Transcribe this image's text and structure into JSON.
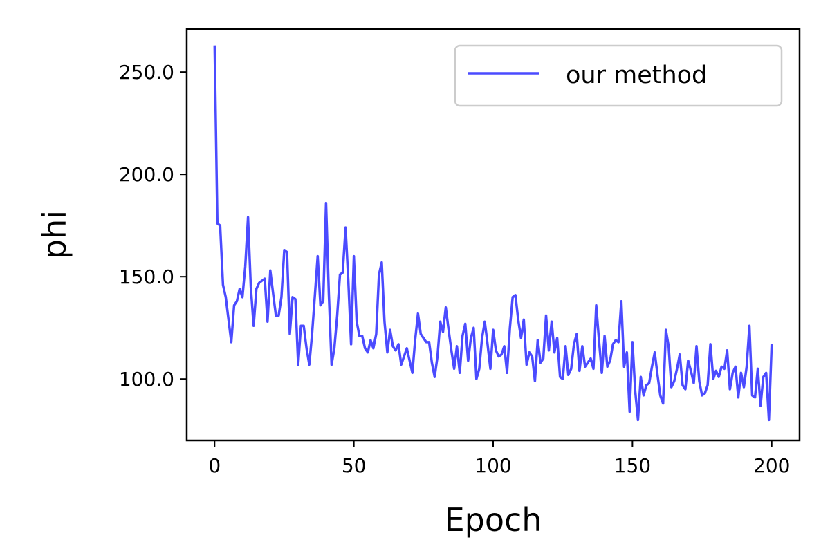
{
  "chart_data": {
    "type": "line",
    "title": "",
    "xlabel": "Epoch",
    "ylabel": "phi",
    "xlim": [
      -10,
      210
    ],
    "ylim": [
      70,
      271
    ],
    "xticks": [
      0,
      50,
      100,
      150,
      200
    ],
    "xtick_labels": [
      "0",
      "50",
      "100",
      "150",
      "200"
    ],
    "yticks": [
      100,
      150,
      200,
      250
    ],
    "ytick_labels": [
      "100.0",
      "150.0",
      "200.0",
      "250.0"
    ],
    "grid": false,
    "legend": "top-right",
    "series": [
      {
        "name": "our method",
        "color": "#4b4bff",
        "x": [
          0,
          1,
          2,
          3,
          4,
          5,
          6,
          7,
          8,
          9,
          10,
          11,
          12,
          13,
          14,
          15,
          16,
          17,
          18,
          19,
          20,
          21,
          22,
          23,
          24,
          25,
          26,
          27,
          28,
          29,
          30,
          31,
          32,
          33,
          34,
          35,
          36,
          37,
          38,
          39,
          40,
          41,
          42,
          43,
          44,
          45,
          46,
          47,
          48,
          49,
          50,
          51,
          52,
          53,
          54,
          55,
          56,
          57,
          58,
          59,
          60,
          61,
          62,
          63,
          64,
          65,
          66,
          67,
          68,
          69,
          70,
          71,
          72,
          73,
          74,
          75,
          76,
          77,
          78,
          79,
          80,
          81,
          82,
          83,
          84,
          85,
          86,
          87,
          88,
          89,
          90,
          91,
          92,
          93,
          94,
          95,
          96,
          97,
          98,
          99,
          100,
          101,
          102,
          103,
          104,
          105,
          106,
          107,
          108,
          109,
          110,
          111,
          112,
          113,
          114,
          115,
          116,
          117,
          118,
          119,
          120,
          121,
          122,
          123,
          124,
          125,
          126,
          127,
          128,
          129,
          130,
          131,
          132,
          133,
          134,
          135,
          136,
          137,
          138,
          139,
          140,
          141,
          142,
          143,
          144,
          145,
          146,
          147,
          148,
          149,
          150,
          151,
          152,
          153,
          154,
          155,
          156,
          157,
          158,
          159,
          160,
          161,
          162,
          163,
          164,
          165,
          166,
          167,
          168,
          169,
          170,
          171,
          172,
          173,
          174,
          175,
          176,
          177,
          178,
          179,
          180,
          181,
          182,
          183,
          184,
          185,
          186,
          187,
          188,
          189,
          190,
          191,
          192,
          193,
          194,
          195,
          196,
          197,
          198,
          199,
          200
        ],
        "values": [
          263,
          176,
          175,
          146,
          140,
          129,
          118,
          136,
          138,
          144,
          140,
          155,
          179,
          145,
          126,
          144,
          147,
          148,
          149,
          128,
          153,
          142,
          131,
          131,
          140,
          163,
          162,
          122,
          140,
          139,
          107,
          126,
          126,
          115,
          107,
          122,
          141,
          160,
          136,
          138,
          186,
          142,
          107,
          115,
          131,
          151,
          152,
          174,
          148,
          117,
          160,
          128,
          121,
          121,
          115,
          113,
          119,
          115,
          122,
          151,
          157,
          128,
          113,
          124,
          116,
          114,
          117,
          107,
          111,
          115,
          109,
          103,
          119,
          132,
          122,
          120,
          118,
          118,
          108,
          101,
          111,
          128,
          123,
          135,
          124,
          114,
          105,
          116,
          103,
          121,
          127,
          109,
          120,
          125,
          100,
          105,
          120,
          128,
          117,
          105,
          124,
          114,
          111,
          112,
          116,
          103,
          125,
          140,
          141,
          129,
          120,
          129,
          107,
          113,
          111,
          99,
          119,
          108,
          110,
          131,
          114,
          128,
          113,
          120,
          101,
          100,
          116,
          102,
          105,
          117,
          122,
          104,
          116,
          106,
          108,
          110,
          105,
          136,
          119,
          103,
          121,
          106,
          109,
          117,
          119,
          118,
          138,
          106,
          113,
          84,
          118,
          94,
          80,
          101,
          92,
          97,
          98,
          106,
          113,
          102,
          92,
          88,
          124,
          116,
          96,
          99,
          105,
          112,
          97,
          95,
          109,
          104,
          98,
          116,
          99,
          92,
          93,
          97,
          117,
          100,
          104,
          101,
          106,
          105,
          114,
          95,
          103,
          106,
          91,
          103,
          96,
          106,
          126,
          92,
          91,
          105,
          87,
          101,
          103,
          80,
          117
        ]
      }
    ]
  }
}
